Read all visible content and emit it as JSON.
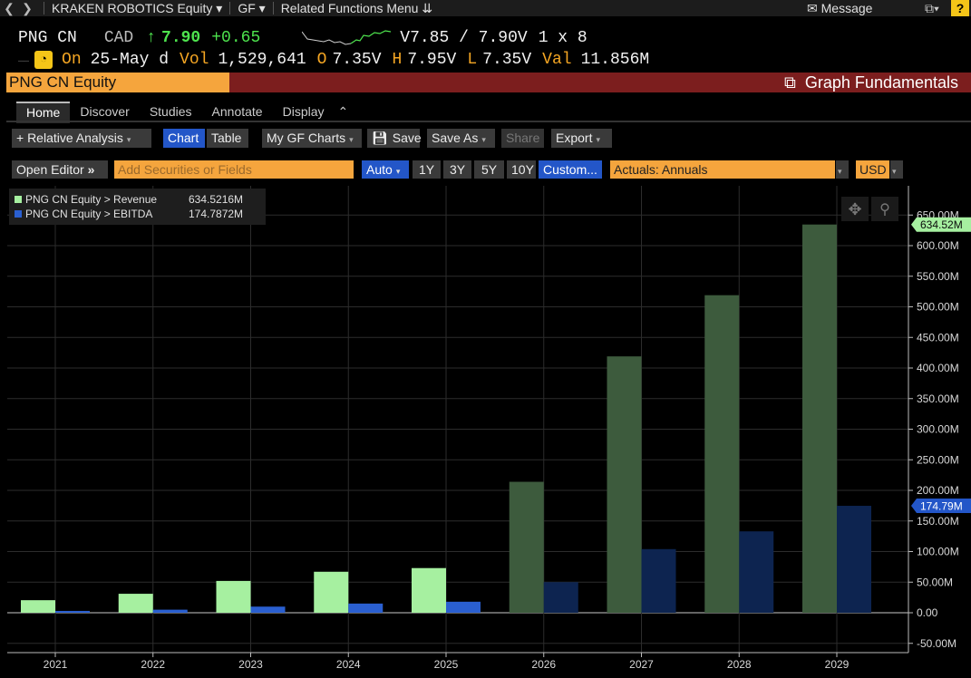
{
  "nav": {
    "security": "KRAKEN ROBOTICS Equity",
    "function": "GF",
    "related": "Related Functions Menu",
    "message": "Message",
    "help": "?"
  },
  "quote": {
    "ticker": "PNG CN",
    "currency": "CAD",
    "price": "7.90",
    "change": "+0.65",
    "bid_ask": "V7.85 / 7.90V",
    "size": "1 x 8",
    "on_label": "On",
    "date": "25-May d",
    "vol_label": "Vol",
    "vol": "1,529,641",
    "o_label": "O",
    "open": "7.35V",
    "h_label": "H",
    "high": "7.95V",
    "l_label": "L",
    "low": "7.35V",
    "val_label": "Val",
    "val": "11.856M"
  },
  "title": {
    "security": "PNG CN Equity",
    "function_name": "Graph Fundamentals"
  },
  "tabs": [
    "Home",
    "Discover",
    "Studies",
    "Annotate",
    "Display"
  ],
  "toolbar": {
    "relative_analysis": "+ Relative Analysis",
    "chart": "Chart",
    "table": "Table",
    "my_gf_charts": "My GF Charts",
    "save": "Save",
    "save_as": "Save As",
    "share": "Share",
    "export": "Export"
  },
  "filters": {
    "open_editor": "Open Editor",
    "add_placeholder": "Add Securities or Fields",
    "auto": "Auto",
    "periods": [
      "1Y",
      "3Y",
      "5Y",
      "10Y"
    ],
    "custom": "Custom...",
    "mode": "Actuals: Annuals",
    "currency": "USD"
  },
  "legend": [
    {
      "label": "PNG CN Equity > Revenue",
      "value": "634.5216M"
    },
    {
      "label": "PNG CN Equity > EBITDA",
      "value": "174.7872M"
    }
  ],
  "colors": {
    "revenue_actual": "#a6f0a0",
    "revenue_estimate": "#3d5b3d",
    "ebitda_actual": "#2a5fd0",
    "ebitda_estimate": "#0d2450",
    "accent_orange": "#f5a53d",
    "title_bar": "#7c1e1e"
  },
  "chart_data": {
    "type": "bar",
    "categories": [
      "2021",
      "2022",
      "2023",
      "2024",
      "2025",
      "2026",
      "2027",
      "2028",
      "2029"
    ],
    "series": [
      {
        "name": "Revenue",
        "values": [
          20.5,
          31,
          52,
          67,
          73,
          214,
          419,
          519,
          634.52
        ]
      },
      {
        "name": "EBITDA",
        "values": [
          3,
          5,
          10,
          15,
          18,
          50,
          104,
          133,
          174.79
        ]
      }
    ],
    "estimate_from": "2026",
    "ylim": [
      -50,
      650
    ],
    "yticks": [
      "-50.00M",
      "0.00",
      "50.00M",
      "100.00M",
      "150.00M",
      "200.00M",
      "250.00M",
      "300.00M",
      "350.00M",
      "400.00M",
      "450.00M",
      "500.00M",
      "550.00M",
      "600.00M",
      "650.00M"
    ],
    "last_value_labels": [
      "634.52M",
      "174.79M"
    ],
    "grid": true,
    "legend_position": "top-left"
  }
}
